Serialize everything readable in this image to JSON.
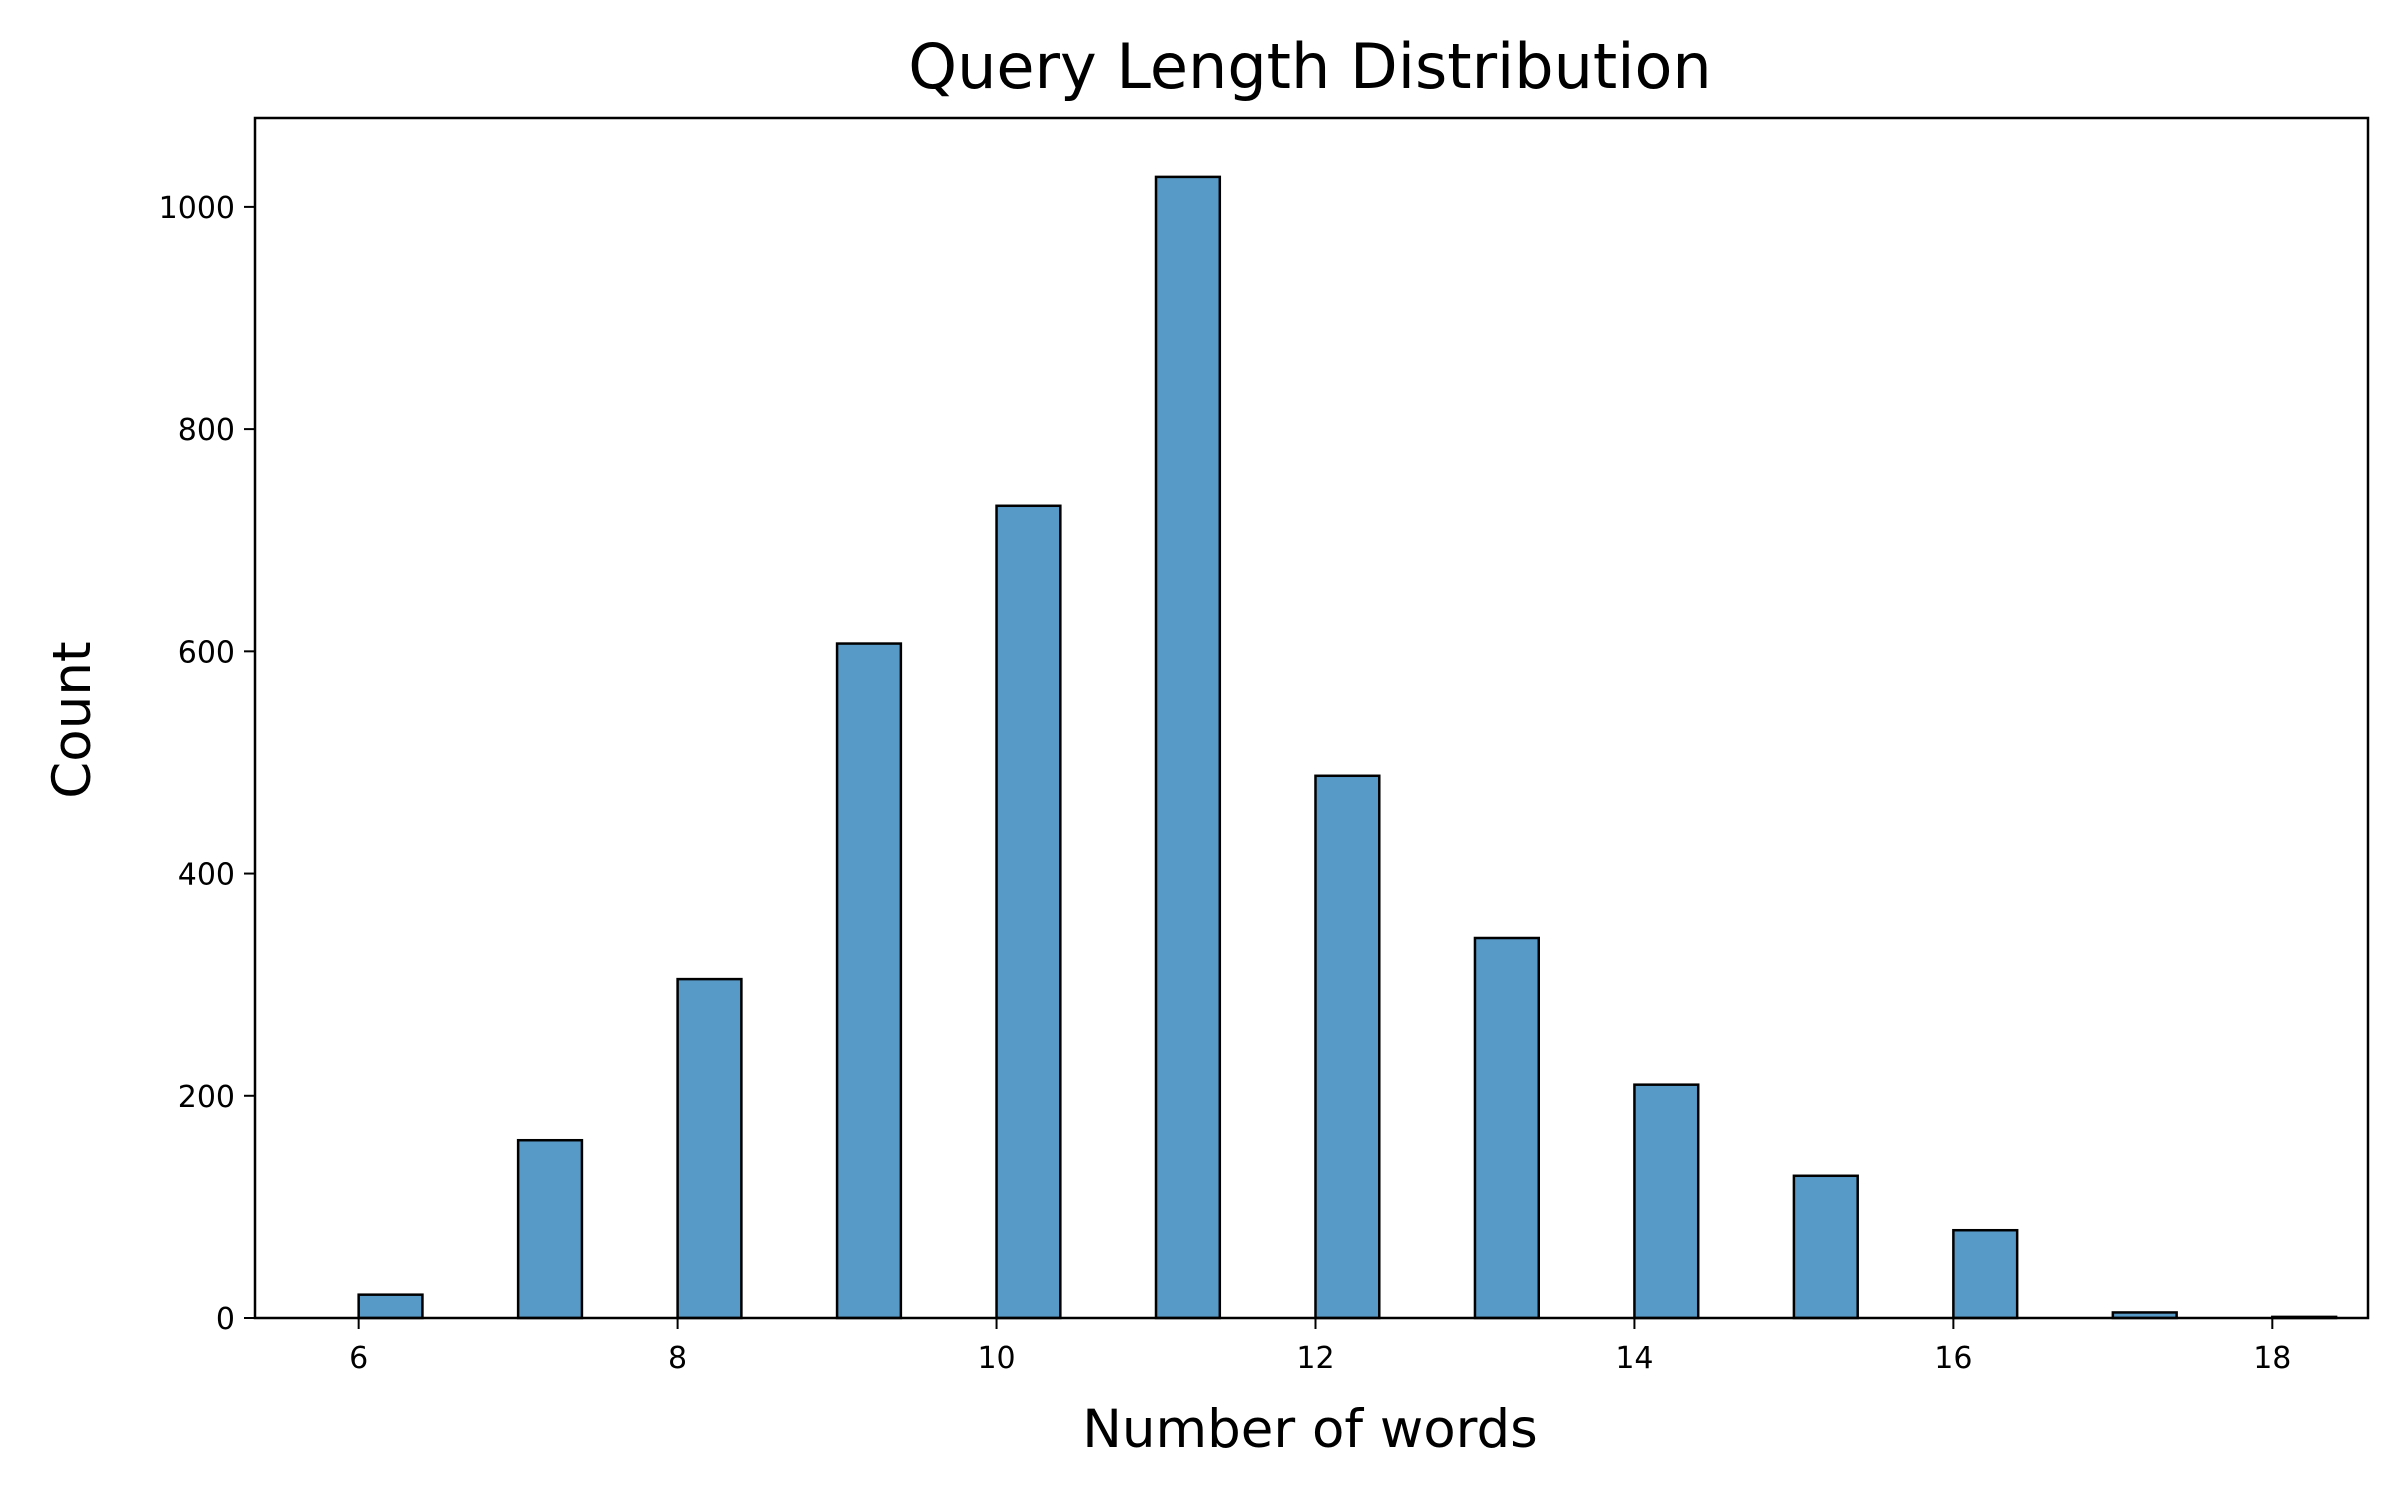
{
  "chart_data": {
    "type": "bar",
    "title": "Query Length Distribution",
    "xlabel": "Number of words",
    "ylabel": "Count",
    "xlim": [
      5.35,
      18.6
    ],
    "ylim": [
      0,
      1080
    ],
    "xticks": [
      6,
      8,
      10,
      12,
      14,
      16,
      18
    ],
    "yticks": [
      0,
      200,
      400,
      600,
      800,
      1000
    ],
    "bin_width": 0.4,
    "bar_color": "#5799c7",
    "edge_color": "#000000",
    "grid": false,
    "legend": "none",
    "bins": [
      {
        "x": 6,
        "value": 21
      },
      {
        "x": 7,
        "value": 160
      },
      {
        "x": 8,
        "value": 305
      },
      {
        "x": 9,
        "value": 607
      },
      {
        "x": 10,
        "value": 731
      },
      {
        "x": 11,
        "value": 1027
      },
      {
        "x": 12,
        "value": 488
      },
      {
        "x": 13,
        "value": 342
      },
      {
        "x": 14,
        "value": 210
      },
      {
        "x": 15,
        "value": 128
      },
      {
        "x": 16,
        "value": 79
      },
      {
        "x": 17,
        "value": 5
      },
      {
        "x": 18,
        "value": 1
      }
    ]
  }
}
